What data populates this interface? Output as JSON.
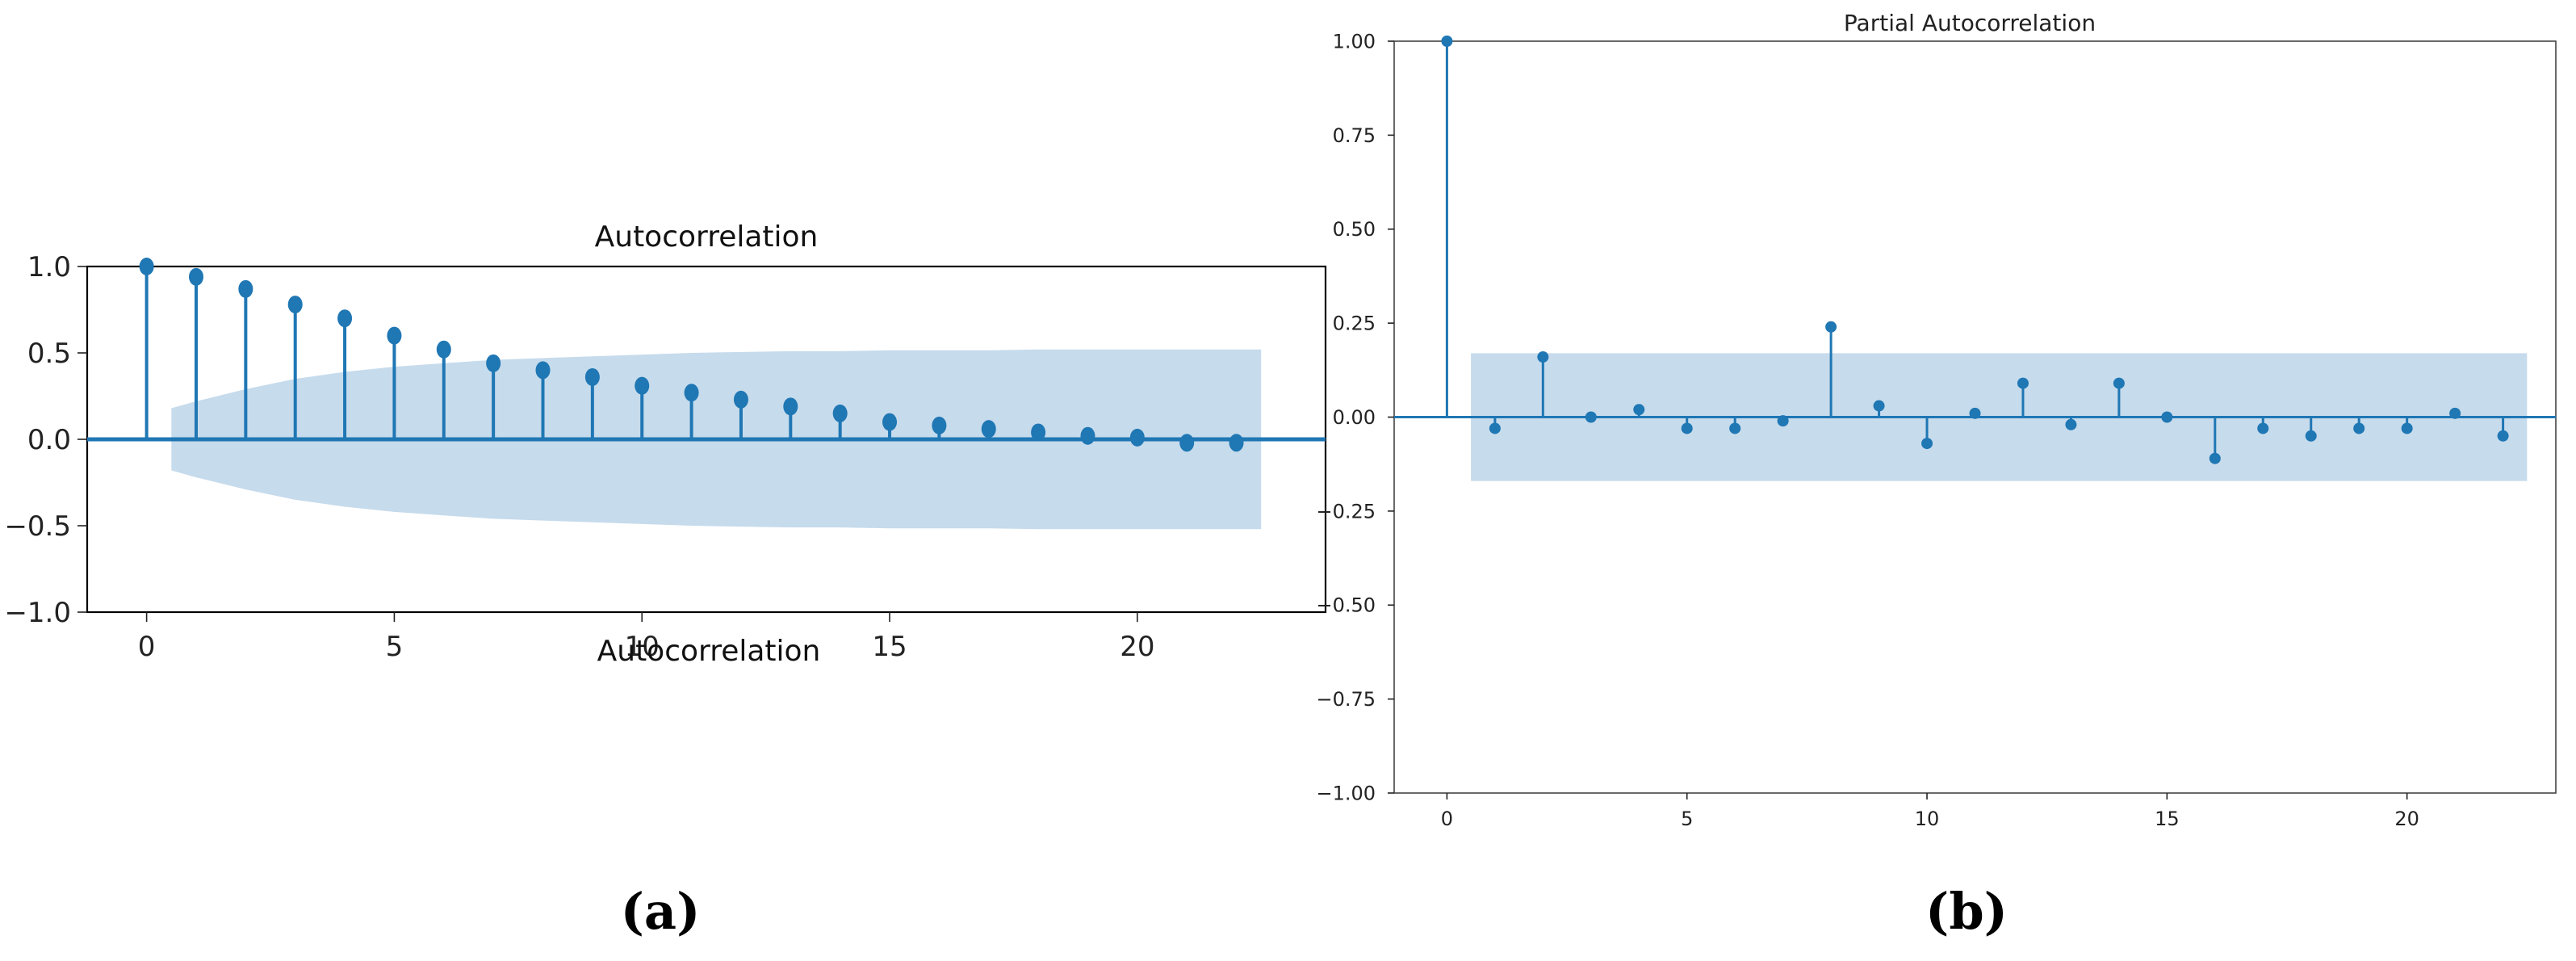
{
  "chart_data": [
    {
      "type": "stem",
      "title": "Autocorrelation",
      "overlap_title": "Autocorrelation",
      "xlabel": "",
      "ylabel": "",
      "x": [
        0,
        1,
        2,
        3,
        4,
        5,
        6,
        7,
        8,
        9,
        10,
        11,
        12,
        13,
        14,
        15,
        16,
        17,
        18,
        19,
        20,
        21,
        22
      ],
      "values": [
        1.0,
        0.94,
        0.87,
        0.78,
        0.7,
        0.6,
        0.52,
        0.44,
        0.4,
        0.36,
        0.31,
        0.27,
        0.23,
        0.19,
        0.15,
        0.1,
        0.08,
        0.06,
        0.04,
        0.02,
        0.01,
        -0.02,
        -0.02
      ],
      "confidence_band": {
        "x": [
          0.5,
          1,
          2,
          3,
          4,
          5,
          6,
          7,
          8,
          9,
          10,
          11,
          12,
          13,
          14,
          15,
          16,
          17,
          18,
          19,
          20,
          21,
          22,
          22.5
        ],
        "upper": [
          0.18,
          0.22,
          0.29,
          0.35,
          0.39,
          0.42,
          0.44,
          0.46,
          0.47,
          0.48,
          0.49,
          0.5,
          0.505,
          0.51,
          0.51,
          0.515,
          0.515,
          0.515,
          0.52,
          0.52,
          0.52,
          0.52,
          0.52,
          0.52
        ]
      },
      "xlim": [
        -1.2,
        23.8
      ],
      "ylim": [
        -1.0,
        1.0
      ],
      "xticks": [
        0,
        5,
        10,
        15,
        20
      ],
      "xtick_labels": [
        "0",
        "5",
        "10",
        "15",
        "20"
      ],
      "yticks": [
        -1.0,
        -0.5,
        0.0,
        0.5,
        1.0
      ],
      "ytick_labels": [
        "−1.0",
        "−0.5",
        "0.0",
        "0.5",
        "1.0"
      ],
      "grid": false,
      "color": "#1f77b4",
      "band_color": "#c6dbec",
      "panel_label": "(a)"
    },
    {
      "type": "stem",
      "title": "Partial Autocorrelation",
      "xlabel": "",
      "ylabel": "",
      "x": [
        0,
        1,
        2,
        3,
        4,
        5,
        6,
        7,
        8,
        9,
        10,
        11,
        12,
        13,
        14,
        15,
        16,
        17,
        18,
        19,
        20,
        21,
        22
      ],
      "values": [
        1.0,
        -0.03,
        0.16,
        0.0,
        0.02,
        -0.03,
        -0.03,
        -0.01,
        0.24,
        0.03,
        -0.07,
        0.01,
        0.09,
        -0.02,
        0.09,
        0.0,
        -0.11,
        -0.03,
        -0.05,
        -0.03,
        -0.03,
        0.01,
        -0.05
      ],
      "confidence_band": {
        "x": [
          0.5,
          22.5
        ],
        "upper": [
          0.17,
          0.17
        ]
      },
      "xlim": [
        -1.1,
        23.1
      ],
      "ylim": [
        -1.0,
        1.0
      ],
      "xticks": [
        0,
        5,
        10,
        15,
        20
      ],
      "xtick_labels": [
        "0",
        "5",
        "10",
        "15",
        "20"
      ],
      "yticks": [
        -1.0,
        -0.75,
        -0.5,
        -0.25,
        0.0,
        0.25,
        0.5,
        0.75,
        1.0
      ],
      "ytick_labels": [
        "−1.00",
        "−0.75",
        "−0.50",
        "−0.25",
        "0.00",
        "0.25",
        "0.50",
        "0.75",
        "1.00"
      ],
      "grid": false,
      "color": "#1f77b4",
      "band_color": "#c6dbec",
      "panel_label": "(b)"
    }
  ]
}
